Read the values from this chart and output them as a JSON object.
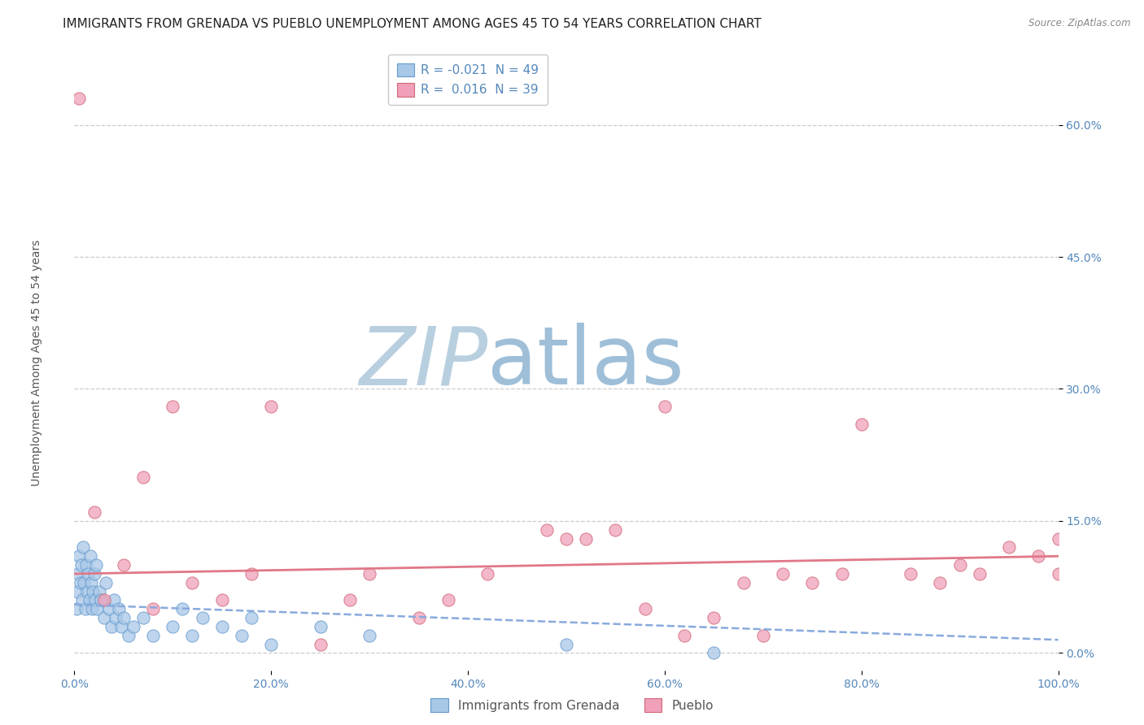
{
  "title": "IMMIGRANTS FROM GRENADA VS PUEBLO UNEMPLOYMENT AMONG AGES 45 TO 54 YEARS CORRELATION CHART",
  "source": "Source: ZipAtlas.com",
  "ylabel": "Unemployment Among Ages 45 to 54 years",
  "xlim": [
    0,
    100
  ],
  "ylim": [
    -2,
    68
  ],
  "xticks": [
    0,
    20,
    40,
    60,
    80,
    100
  ],
  "xtick_labels": [
    "0.0%",
    "20.0%",
    "40.0%",
    "60.0%",
    "80.0%",
    "100.0%"
  ],
  "ytick_positions": [
    0,
    15,
    30,
    45,
    60
  ],
  "ytick_labels": [
    "0.0%",
    "15.0%",
    "30.0%",
    "45.0%",
    "60.0%"
  ],
  "legend_R1": "-0.021",
  "legend_N1": "49",
  "legend_R2": "0.016",
  "legend_N2": "39",
  "color_blue": "#a8c8e8",
  "color_blue_edge": "#6699cc",
  "color_pink": "#f0a0b8",
  "color_pink_edge": "#d06878",
  "color_blue_line": "#88aadd",
  "color_pink_line": "#e07888",
  "color_axis": "#5588bb",
  "watermark_zip": "ZIP",
  "watermark_atlas": "atlas",
  "watermark_color_zip": "#b8cfe0",
  "watermark_color_atlas": "#9fbfd8",
  "background_color": "#ffffff",
  "grid_color": "#cccccc",
  "title_fontsize": 11,
  "label_fontsize": 10,
  "tick_fontsize": 10,
  "blue_x": [
    0.2,
    0.3,
    0.4,
    0.5,
    0.6,
    0.7,
    0.8,
    0.9,
    1.0,
    1.1,
    1.2,
    1.3,
    1.4,
    1.5,
    1.6,
    1.7,
    1.8,
    1.9,
    2.0,
    2.1,
    2.2,
    2.3,
    2.5,
    2.7,
    3.0,
    3.2,
    3.5,
    3.8,
    4.0,
    4.2,
    4.5,
    4.8,
    5.0,
    5.5,
    6.0,
    7.0,
    8.0,
    10.0,
    11.0,
    12.0,
    13.0,
    15.0,
    17.0,
    18.0,
    20.0,
    25.0,
    30.0,
    50.0,
    65.0
  ],
  "blue_y": [
    5.0,
    7.0,
    9.0,
    11.0,
    8.0,
    10.0,
    6.0,
    12.0,
    8.0,
    5.0,
    10.0,
    7.0,
    9.0,
    6.0,
    11.0,
    8.0,
    5.0,
    7.0,
    9.0,
    6.0,
    10.0,
    5.0,
    7.0,
    6.0,
    4.0,
    8.0,
    5.0,
    3.0,
    6.0,
    4.0,
    5.0,
    3.0,
    4.0,
    2.0,
    3.0,
    4.0,
    2.0,
    3.0,
    5.0,
    2.0,
    4.0,
    3.0,
    2.0,
    4.0,
    1.0,
    3.0,
    2.0,
    1.0,
    0.0
  ],
  "pink_x": [
    0.5,
    2.0,
    3.0,
    5.0,
    7.0,
    8.0,
    10.0,
    12.0,
    15.0,
    18.0,
    20.0,
    25.0,
    28.0,
    30.0,
    35.0,
    38.0,
    42.0,
    48.0,
    50.0,
    52.0,
    55.0,
    58.0,
    60.0,
    62.0,
    65.0,
    68.0,
    70.0,
    72.0,
    75.0,
    78.0,
    80.0,
    85.0,
    88.0,
    90.0,
    92.0,
    95.0,
    98.0,
    100.0,
    100.0
  ],
  "pink_y": [
    63.0,
    16.0,
    6.0,
    10.0,
    20.0,
    5.0,
    28.0,
    8.0,
    6.0,
    9.0,
    28.0,
    1.0,
    6.0,
    9.0,
    4.0,
    6.0,
    9.0,
    14.0,
    13.0,
    13.0,
    14.0,
    5.0,
    28.0,
    2.0,
    4.0,
    8.0,
    2.0,
    9.0,
    8.0,
    9.0,
    26.0,
    9.0,
    8.0,
    10.0,
    9.0,
    12.0,
    11.0,
    13.0,
    9.0
  ]
}
